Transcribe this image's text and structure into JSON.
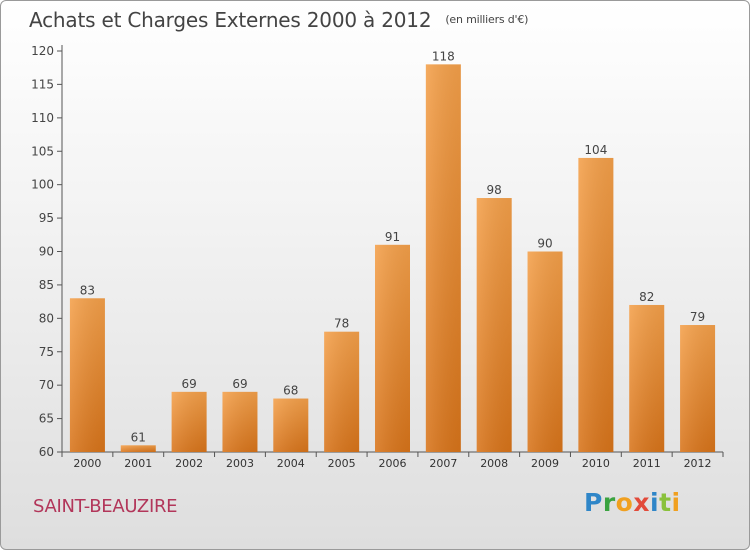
{
  "header": {
    "title": "Achats et Charges Externes 2000 à 2012",
    "unit": "(en milliers d'€)"
  },
  "footer": {
    "commune": "SAINT-BEAUZIRE",
    "brand": "Proxiti"
  },
  "colors": {
    "bar_light": "#f4a04a",
    "bar_dark": "#d8741a",
    "axis": "#555555",
    "commune": "#b2365a"
  },
  "chart_data": {
    "type": "bar",
    "title": "Achats et Charges Externes 2000 à 2012",
    "subtitle": "(en milliers d'€)",
    "categories": [
      "2000",
      "2001",
      "2002",
      "2003",
      "2004",
      "2005",
      "2006",
      "2007",
      "2008",
      "2009",
      "2010",
      "2011",
      "2012"
    ],
    "values": [
      83,
      61,
      69,
      69,
      68,
      78,
      91,
      118,
      98,
      90,
      104,
      82,
      79
    ],
    "ylim": [
      60,
      120
    ],
    "yticks": [
      60,
      65,
      70,
      75,
      80,
      85,
      90,
      95,
      100,
      105,
      110,
      115,
      120
    ],
    "grid": false,
    "legend": "none"
  }
}
